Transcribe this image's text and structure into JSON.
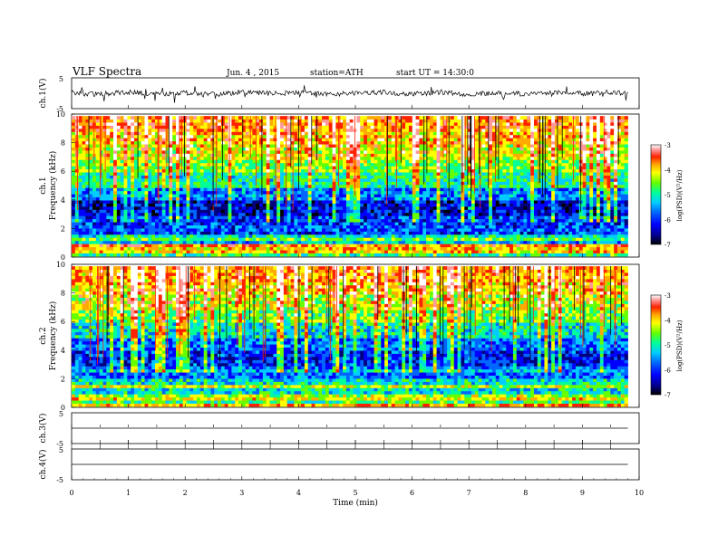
{
  "header": {
    "title": "VLF Spectra",
    "date": "Jun. 4 , 2015",
    "station": "station=ATH",
    "start": "start UT = 14:30:0"
  },
  "colors": {
    "colormap": [
      "#000000",
      "#00007f",
      "#0000ff",
      "#0066ff",
      "#00ccff",
      "#00ff99",
      "#66ff00",
      "#ffff00",
      "#ffaa00",
      "#ff2200",
      "#ff9999",
      "#ffffff"
    ],
    "trace": "#000000"
  },
  "chart_data": [
    {
      "type": "line",
      "panel": "ch1-waveform",
      "ylabel": "ch.1(V)",
      "ytick_labels": [
        "5",
        "-5"
      ],
      "ylim": [
        -5,
        5
      ],
      "x": [
        0,
        0.5,
        1,
        1.5,
        2,
        2.5,
        3,
        3.5,
        4,
        4.5,
        5,
        5.5,
        6,
        6.5,
        7,
        7.5,
        8,
        8.5,
        9,
        9.5,
        9.8
      ],
      "values": [
        0.2,
        -0.3,
        0.4,
        -0.2,
        0.1,
        -0.4,
        0.3,
        -0.1,
        0.2,
        -0.3,
        0.1,
        0.3,
        -0.2,
        0.2,
        -0.3,
        0.1,
        -0.2,
        0.3,
        -0.1,
        0.2,
        0.1
      ]
    },
    {
      "type": "heatmap",
      "panel": "ch1-spectrogram",
      "channel_label": "ch.1",
      "ylabel": "Frequency (kHz)",
      "ytick_labels": [
        "0",
        "2",
        "4",
        "6",
        "8",
        "10"
      ],
      "ylim": [
        0,
        10
      ],
      "colorbar_label": "log(PSD)(V²/Hz)",
      "colorbar_ticks": [
        "-3",
        "-4",
        "-5",
        "-6",
        "-7"
      ],
      "colorbar_range": [
        -7,
        -3
      ],
      "frequency_bands_khz": [
        0,
        1,
        2,
        3,
        4,
        5,
        6,
        7,
        8,
        9,
        10
      ],
      "mean_log_psd": [
        -4.2,
        -5.6,
        -6.1,
        -6.4,
        -5.8,
        -5.2,
        -4.8,
        -4.5,
        -4.2,
        -4.0
      ]
    },
    {
      "type": "heatmap",
      "panel": "ch2-spectrogram",
      "channel_label": "ch.2",
      "ylabel": "Frequency (kHz)",
      "ytick_labels": [
        "0",
        "2",
        "4",
        "6",
        "8",
        "10"
      ],
      "ylim": [
        0,
        10
      ],
      "colorbar_label": "log(PSD)(V²/Hz)",
      "colorbar_ticks": [
        "-3",
        "-4",
        "-5",
        "-6",
        "-7"
      ],
      "colorbar_range": [
        -7,
        -3
      ],
      "frequency_bands_khz": [
        0,
        1,
        2,
        3,
        4,
        5,
        6,
        7,
        8,
        9,
        10
      ],
      "mean_log_psd": [
        -4.4,
        -5.4,
        -5.9,
        -6.2,
        -5.9,
        -5.4,
        -4.9,
        -4.6,
        -4.3,
        -4.1
      ]
    },
    {
      "type": "line",
      "panel": "ch3-waveform",
      "ylabel": "ch.3(V)",
      "ytick_labels": [
        "5",
        "-5"
      ],
      "ylim": [
        -5,
        5
      ],
      "x": [
        0,
        9.8
      ],
      "values": [
        0,
        0
      ]
    },
    {
      "type": "line",
      "panel": "ch4-waveform",
      "ylabel": "ch.4(V)",
      "ytick_labels": [
        "5",
        "-5"
      ],
      "ylim": [
        -5,
        5
      ],
      "x": [
        0,
        9.8
      ],
      "values": [
        0,
        0
      ]
    }
  ],
  "xaxis": {
    "xlabel": "Time (min)",
    "xlim": [
      0,
      10
    ],
    "tick_labels": [
      "0",
      "1",
      "2",
      "3",
      "4",
      "5",
      "6",
      "7",
      "8",
      "9",
      "10"
    ]
  }
}
